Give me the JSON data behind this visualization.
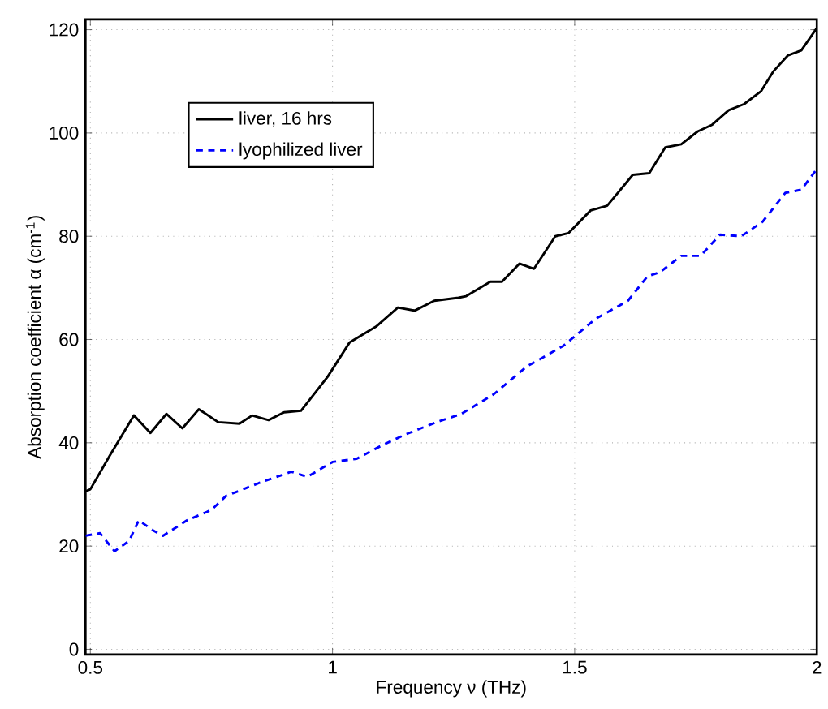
{
  "chart_data": {
    "type": "line",
    "xlabel": "Frequency ν (THz)",
    "ylabel": "Absorption coefficient α (cm$^{-1}$)",
    "xlim": [
      0.49,
      2.0
    ],
    "ylim": [
      -1,
      122
    ],
    "xticks": [
      0.5,
      1,
      1.5,
      2
    ],
    "yticks": [
      0,
      20,
      40,
      60,
      80,
      100,
      120
    ],
    "grid": true,
    "legend": "top left",
    "marker": "none",
    "series": [
      {
        "name": "liver, 16 hrs",
        "color": "#000000",
        "line_style": "solid",
        "x": [
          0.49,
          0.5,
          0.54,
          0.59,
          0.624,
          0.657,
          0.69,
          0.724,
          0.764,
          0.808,
          0.834,
          0.868,
          0.9,
          0.935,
          0.99,
          1.035,
          1.09,
          1.135,
          1.17,
          1.21,
          1.26,
          1.276,
          1.326,
          1.35,
          1.386,
          1.416,
          1.46,
          1.487,
          1.533,
          1.567,
          1.62,
          1.654,
          1.687,
          1.72,
          1.754,
          1.784,
          1.818,
          1.85,
          1.885,
          1.91,
          1.94,
          1.968,
          2.0
        ],
        "values": [
          30.6,
          31,
          37.5,
          45.3,
          41.9,
          45.6,
          42.8,
          46.5,
          44,
          43.7,
          45.3,
          44.4,
          45.9,
          46.2,
          52.8,
          59.4,
          62.5,
          66.2,
          65.6,
          67.5,
          68.1,
          68.4,
          71.2,
          71.2,
          74.7,
          73.7,
          80,
          80.6,
          85,
          85.9,
          91.9,
          92.2,
          97.2,
          97.8,
          100.3,
          101.6,
          104.4,
          105.6,
          108.1,
          111.9,
          115,
          116,
          120.3
        ]
      },
      {
        "name": "lyophilized liver",
        "color": "#0000ff",
        "line_style": "dashed",
        "x": [
          0.49,
          0.52,
          0.55,
          0.58,
          0.6,
          0.63,
          0.65,
          0.7,
          0.75,
          0.78,
          0.848,
          0.915,
          0.948,
          1.0,
          1.05,
          1.1,
          1.15,
          1.215,
          1.266,
          1.333,
          1.4,
          1.477,
          1.543,
          1.61,
          1.65,
          1.677,
          1.72,
          1.76,
          1.8,
          1.844,
          1.888,
          1.935,
          1.968,
          2.0
        ],
        "values": [
          22,
          22.5,
          19,
          21,
          25,
          23,
          22,
          25,
          27,
          29.7,
          32.2,
          34.4,
          33.4,
          36.3,
          36.9,
          39.4,
          41.6,
          44,
          45.6,
          49.4,
          54.7,
          58.8,
          64,
          67.5,
          72.2,
          73.1,
          76.2,
          76.2,
          80.3,
          80,
          82.8,
          88.4,
          89,
          93
        ]
      }
    ]
  }
}
